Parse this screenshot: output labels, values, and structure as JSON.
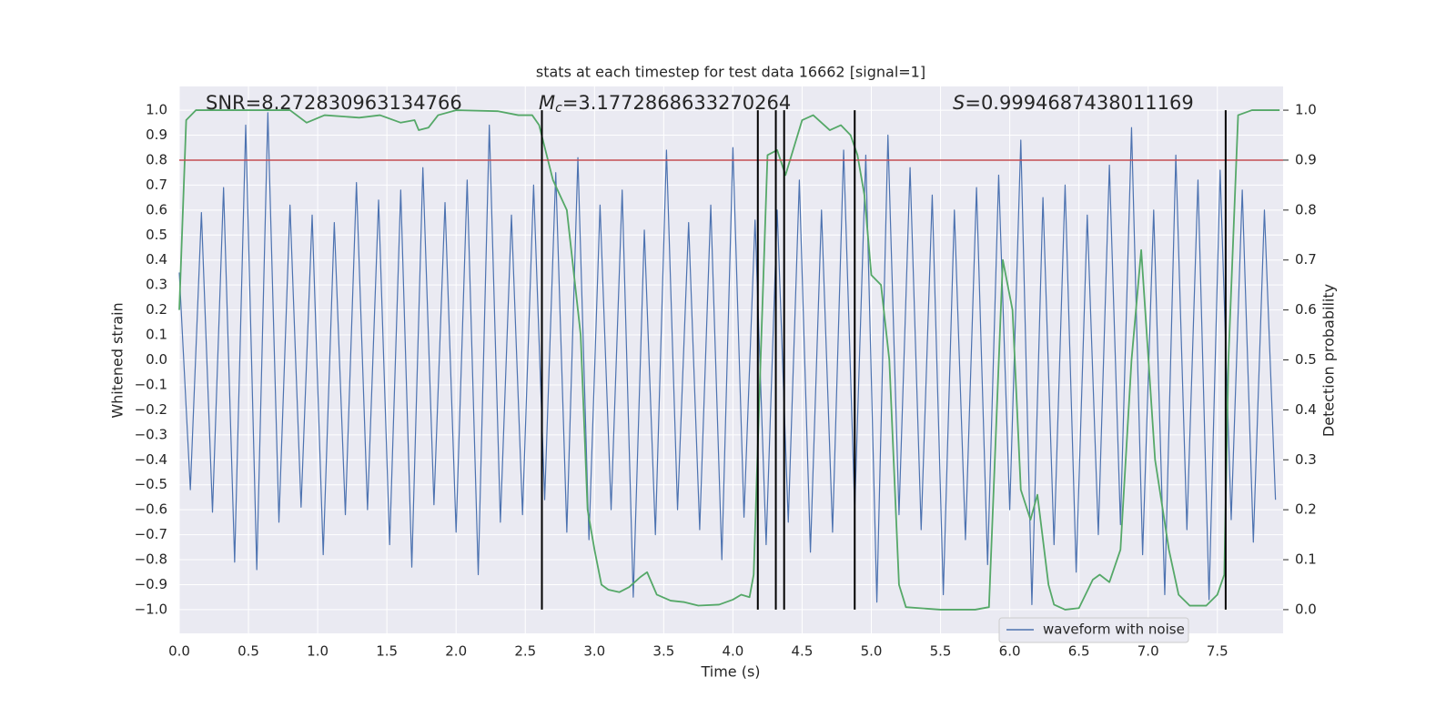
{
  "chart_data": {
    "type": "line",
    "title": "stats at each timestep for test data 16662 [signal=1]",
    "x_label": "Time (s)",
    "y_label": "Whitened strain",
    "y2_label": "Detection probability",
    "annotations": [
      {
        "text": "SNR=8.272830963134766"
      },
      {
        "symbol": "M",
        "subscript": "c",
        "text": "=3.1772868633270264"
      },
      {
        "symbol": "S",
        "text": "=0.9994687438011169"
      }
    ],
    "xlim": [
      0,
      7.975
    ],
    "ylim": [
      -1.095,
      1.095
    ],
    "y2lim": [
      -0.0475,
      1.0475
    ],
    "xticks": [
      {
        "value": 0,
        "label": "0.0"
      },
      0.5,
      {
        "value": 1,
        "label": "1.0"
      },
      1.5,
      {
        "value": 2,
        "label": "2.0"
      },
      2.5,
      {
        "value": 3,
        "label": "3.0"
      },
      3.5,
      {
        "value": 4,
        "label": "4.0"
      },
      4.5,
      {
        "value": 5,
        "label": "5.0"
      },
      5.5,
      {
        "value": 6,
        "label": "6.0"
      },
      6.5,
      {
        "value": 7,
        "label": "7.0"
      },
      7.5
    ],
    "yticks": [
      {
        "value": -1,
        "label": "−1.0"
      },
      {
        "value": -0.9,
        "label": "−0.9"
      },
      {
        "value": -0.8,
        "label": "−0.8"
      },
      {
        "value": -0.7,
        "label": "−0.7"
      },
      {
        "value": -0.6,
        "label": "−0.6"
      },
      {
        "value": -0.5,
        "label": "−0.5"
      },
      {
        "value": -0.4,
        "label": "−0.4"
      },
      {
        "value": -0.3,
        "label": "−0.3"
      },
      {
        "value": -0.2,
        "label": "−0.2"
      },
      {
        "value": -0.1,
        "label": "−0.1"
      },
      {
        "value": 0,
        "label": "0.0"
      },
      0.1,
      0.2,
      0.3,
      0.4,
      0.5,
      0.6,
      0.7,
      0.8,
      0.9,
      {
        "value": 1,
        "label": "1.0"
      }
    ],
    "y2ticks": [
      {
        "value": 0,
        "label": "0.0"
      },
      0.1,
      0.2,
      0.3,
      0.4,
      0.5,
      0.6,
      0.7,
      0.8,
      0.9,
      {
        "value": 1,
        "label": "1.0"
      }
    ],
    "grid": true,
    "legend": "lower right",
    "series": [
      {
        "name": "waveform with noise",
        "color": "#4c72b0",
        "axis": "y",
        "x": [
          0,
          0.08,
          0.16,
          0.24,
          0.32,
          0.4,
          0.48,
          0.56,
          0.64,
          0.72,
          0.8,
          0.88,
          0.96,
          1.04,
          1.12,
          1.2,
          1.28,
          1.36,
          1.44,
          1.52,
          1.6,
          1.68,
          1.76,
          1.84,
          1.92,
          2,
          2.08,
          2.16,
          2.24,
          2.32,
          2.4,
          2.48,
          2.56,
          2.64,
          2.72,
          2.8,
          2.88,
          2.96,
          3.04,
          3.12,
          3.2,
          3.28,
          3.36,
          3.44,
          3.52,
          3.6,
          3.68,
          3.76,
          3.84,
          3.92,
          4,
          4.08,
          4.16,
          4.24,
          4.32,
          4.4,
          4.48,
          4.56,
          4.64,
          4.72,
          4.8,
          4.88,
          4.96,
          5.04,
          5.12,
          5.2,
          5.28,
          5.36,
          5.44,
          5.52,
          5.6,
          5.68,
          5.76,
          5.84,
          5.92,
          6,
          6.08,
          6.16,
          6.24,
          6.32,
          6.4,
          6.48,
          6.56,
          6.64,
          6.72,
          6.8,
          6.88,
          6.96,
          7.04,
          7.12,
          7.2,
          7.28,
          7.36,
          7.44,
          7.52,
          7.6,
          7.68,
          7.76,
          7.84,
          7.92
        ],
        "values": [
          0.35,
          -0.52,
          0.59,
          -0.61,
          0.69,
          -0.81,
          0.94,
          -0.84,
          0.99,
          -0.65,
          0.62,
          -0.59,
          0.58,
          -0.78,
          0.55,
          -0.62,
          0.71,
          -0.6,
          0.64,
          -0.74,
          0.68,
          -0.83,
          0.77,
          -0.58,
          0.63,
          -0.69,
          0.72,
          -0.86,
          0.94,
          -0.65,
          0.58,
          -0.62,
          0.7,
          -0.56,
          0.75,
          -0.69,
          0.81,
          -0.72,
          0.62,
          -0.6,
          0.68,
          -0.95,
          0.52,
          -0.7,
          0.84,
          -0.6,
          0.55,
          -0.68,
          0.62,
          -0.8,
          0.85,
          -0.63,
          0.56,
          -0.74,
          0.6,
          -0.65,
          0.72,
          -0.77,
          0.6,
          -0.69,
          0.84,
          -0.6,
          0.82,
          -0.97,
          0.9,
          -0.62,
          0.77,
          -0.68,
          0.66,
          -0.94,
          0.6,
          -0.72,
          0.69,
          -0.82,
          0.74,
          -0.6,
          0.88,
          -0.98,
          0.65,
          -0.74,
          0.7,
          -0.85,
          0.58,
          -0.7,
          0.78,
          -0.66,
          0.93,
          -0.78,
          0.6,
          -0.94,
          0.82,
          -0.68,
          0.72,
          -0.96,
          0.76,
          -0.64,
          0.68,
          -0.73,
          0.6,
          -0.56
        ]
      },
      {
        "name": "Detection probability",
        "color": "#55a868",
        "axis": "y2",
        "x": [
          0,
          0.05,
          0.12,
          0.5,
          0.8,
          0.92,
          1.05,
          1.3,
          1.45,
          1.6,
          1.7,
          1.73,
          1.8,
          1.87,
          2,
          2.3,
          2.45,
          2.55,
          2.6,
          2.7,
          2.8,
          2.9,
          2.95,
          3,
          3.05,
          3.1,
          3.18,
          3.25,
          3.33,
          3.38,
          3.45,
          3.55,
          3.65,
          3.75,
          3.9,
          4,
          4.06,
          4.12,
          4.15,
          4.2,
          4.25,
          4.32,
          4.38,
          4.5,
          4.58,
          4.7,
          4.78,
          4.85,
          4.9,
          4.95,
          5,
          5.07,
          5.13,
          5.2,
          5.25,
          5.5,
          5.75,
          5.85,
          5.95,
          6.02,
          6.08,
          6.15,
          6.2,
          6.28,
          6.32,
          6.4,
          6.5,
          6.6,
          6.65,
          6.72,
          6.8,
          6.88,
          6.95,
          7.05,
          7.15,
          7.22,
          7.3,
          7.42,
          7.5,
          7.55,
          7.58,
          7.65,
          7.75,
          7.95
        ],
        "values": [
          0.6,
          0.98,
          1,
          1,
          1,
          0.975,
          0.99,
          0.985,
          0.99,
          0.975,
          0.98,
          0.96,
          0.965,
          0.99,
          1,
          0.998,
          0.99,
          0.99,
          0.97,
          0.86,
          0.8,
          0.55,
          0.2,
          0.12,
          0.05,
          0.04,
          0.035,
          0.045,
          0.065,
          0.075,
          0.03,
          0.018,
          0.015,
          0.008,
          0.01,
          0.02,
          0.03,
          0.025,
          0.07,
          0.5,
          0.91,
          0.92,
          0.87,
          0.98,
          0.99,
          0.96,
          0.97,
          0.95,
          0.91,
          0.83,
          0.67,
          0.65,
          0.5,
          0.05,
          0.005,
          0,
          0,
          0.005,
          0.7,
          0.6,
          0.24,
          0.18,
          0.23,
          0.05,
          0.01,
          0,
          0.003,
          0.06,
          0.07,
          0.055,
          0.12,
          0.5,
          0.72,
          0.3,
          0.12,
          0.03,
          0.008,
          0.008,
          0.03,
          0.07,
          0.5,
          0.99,
          1,
          1
        ]
      }
    ],
    "threshold": {
      "y": 0.8,
      "color": "#c44e52"
    },
    "vlines": {
      "x": [
        2.62,
        4.18,
        4.31,
        4.37,
        4.88,
        7.56
      ],
      "ymin": -1,
      "ymax": 1,
      "color": "#000000"
    }
  }
}
